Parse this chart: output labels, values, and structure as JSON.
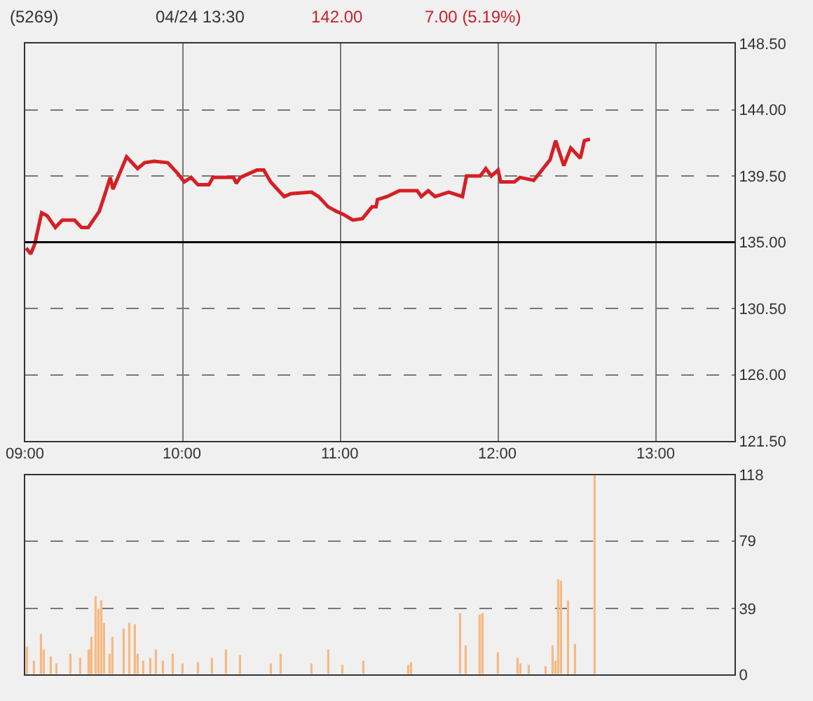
{
  "chart_data": [
    {
      "type": "line",
      "title": "(5269)",
      "annotations": [
        "04/24 13:30",
        "142.00",
        "7.00 (5.19%)"
      ],
      "x": [
        9.006,
        9.035,
        9.061,
        9.104,
        9.139,
        9.191,
        9.235,
        9.313,
        9.357,
        9.4,
        9.47,
        9.513,
        9.539,
        9.557,
        9.643,
        9.713,
        9.757,
        9.817,
        9.904,
        9.965,
        10.009,
        10.052,
        10.096,
        10.165,
        10.191,
        10.322,
        10.339,
        10.365,
        10.47,
        10.513,
        10.557,
        10.643,
        10.687,
        10.817,
        10.861,
        10.922,
        10.974,
        11.017,
        11.078,
        11.139,
        11.2,
        11.226,
        11.235,
        11.296,
        11.374,
        11.487,
        11.513,
        11.557,
        11.6,
        11.687,
        11.774,
        11.8,
        11.887,
        11.922,
        11.957,
        12.0,
        12.017,
        12.104,
        12.139,
        12.226,
        12.278,
        12.33,
        12.365,
        12.417,
        12.461,
        12.522,
        12.548,
        12.583
      ],
      "series": [
        {
          "color": "#d42025",
          "values": [
            134.6,
            134.2,
            134.9,
            137.0,
            136.8,
            136.0,
            136.5,
            136.5,
            136.0,
            136.0,
            137.1,
            138.5,
            139.4,
            138.6,
            140.8,
            140.0,
            140.4,
            140.5,
            140.4,
            139.7,
            139.1,
            139.4,
            138.9,
            138.9,
            139.4,
            139.4,
            139.0,
            139.4,
            139.9,
            139.9,
            139.1,
            138.1,
            138.3,
            138.4,
            138.1,
            137.4,
            137.1,
            136.9,
            136.5,
            136.6,
            137.4,
            137.4,
            137.9,
            138.1,
            138.5,
            138.5,
            138.1,
            138.5,
            138.1,
            138.4,
            138.1,
            139.5,
            139.5,
            140.0,
            139.5,
            139.9,
            139.1,
            139.1,
            139.4,
            139.2,
            139.9,
            140.6,
            141.9,
            140.2,
            141.4,
            140.7,
            141.9,
            142.0
          ]
        }
      ],
      "xlim": [
        9,
        13.5
      ],
      "xticks": [
        {
          "value": 9,
          "label": "09:00"
        },
        {
          "value": 10,
          "label": "10:00"
        },
        {
          "value": 11,
          "label": "11:00"
        },
        {
          "value": 12,
          "label": "12:00"
        },
        {
          "value": 13,
          "label": "13:00"
        }
      ],
      "ylim": [
        121.5,
        148.5
      ],
      "yticks": [
        {
          "value": 121.5,
          "label": "121.50"
        },
        {
          "value": 126,
          "label": "126.00"
        },
        {
          "value": 130.5,
          "label": "130.50"
        },
        {
          "value": 135,
          "label": "135.00"
        },
        {
          "value": 139.5,
          "label": "139.50"
        },
        {
          "value": 144,
          "label": "144.00"
        },
        {
          "value": 148.5,
          "label": "148.50"
        }
      ],
      "ref_lines": [
        {
          "axis": "y",
          "value": 135,
          "color": "#000000"
        }
      ],
      "grid": true
    },
    {
      "type": "bar",
      "x": [
        9.009,
        9.061,
        9.104,
        9.122,
        9.165,
        9.2,
        9.287,
        9.348,
        9.409,
        9.426,
        9.452,
        9.47,
        9.487,
        9.5,
        9.535,
        9.557,
        9.626,
        9.661,
        9.696,
        9.713,
        9.748,
        9.8,
        9.835,
        9.878,
        9.939,
        10.0,
        10.1,
        10.191,
        10.278,
        10.365,
        10.557,
        10.626,
        10.817,
        10.922,
        11.017,
        11.148,
        11.435,
        11.452,
        11.757,
        11.8,
        11.887,
        11.904,
        12.0,
        12.122,
        12.14,
        12.2,
        12.3,
        12.352,
        12.37,
        12.383,
        12.4,
        12.448,
        12.487,
        12.617
      ],
      "series": [
        {
          "color": "#f7b982",
          "values": [
            16,
            8,
            23,
            14,
            10,
            6,
            12,
            9,
            14,
            22,
            46,
            38,
            43,
            30,
            12,
            22,
            27,
            30,
            29,
            12,
            8,
            9,
            14,
            8,
            12,
            6,
            7,
            9,
            14,
            11,
            6,
            12,
            6,
            14,
            5,
            8,
            5,
            7,
            36,
            17,
            35,
            36,
            13,
            9,
            6,
            5,
            4,
            17,
            8,
            56,
            55,
            43,
            18,
            118
          ]
        }
      ],
      "xlim": [
        9,
        13.5
      ],
      "ylim": [
        0,
        118
      ],
      "yticks": [
        0,
        39,
        79,
        118
      ],
      "grid": "y",
      "tick_labels": "y"
    }
  ]
}
